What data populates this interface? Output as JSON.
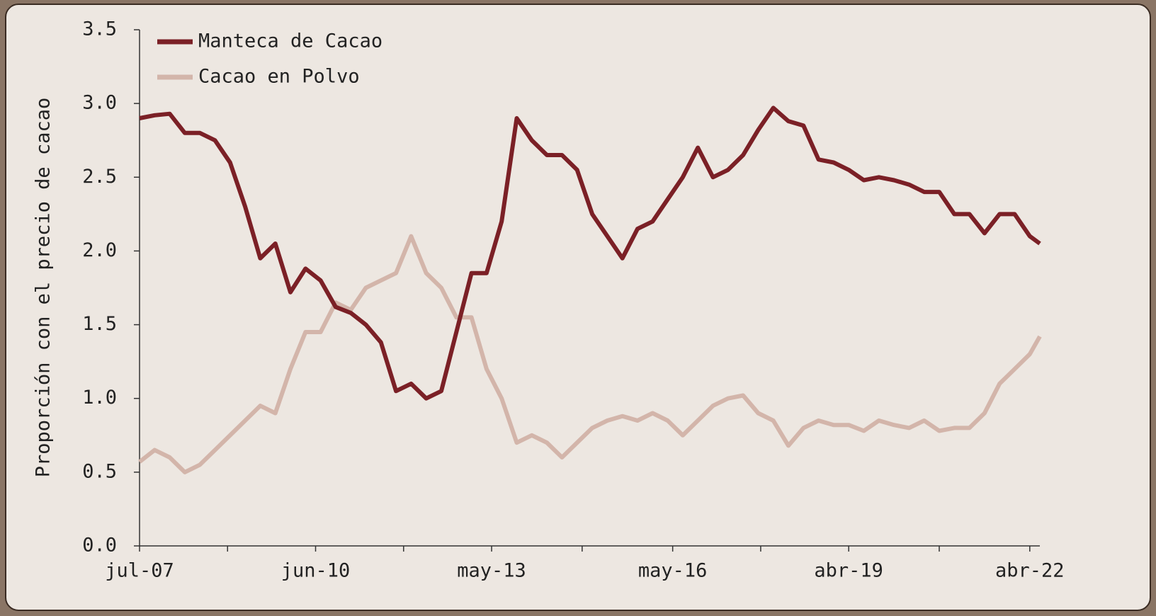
{
  "chart_data": {
    "type": "line",
    "y_label": "Proporción con el precio de cacao",
    "x": [
      "2007-07",
      "2007-10",
      "2008-01",
      "2008-04",
      "2008-07",
      "2008-10",
      "2009-01",
      "2009-04",
      "2009-07",
      "2009-10",
      "2010-01",
      "2010-04",
      "2010-07",
      "2010-10",
      "2011-01",
      "2011-04",
      "2011-07",
      "2011-10",
      "2012-01",
      "2012-04",
      "2012-07",
      "2012-10",
      "2013-01",
      "2013-04",
      "2013-07",
      "2013-10",
      "2014-01",
      "2014-04",
      "2014-07",
      "2014-10",
      "2015-01",
      "2015-04",
      "2015-07",
      "2015-10",
      "2016-01",
      "2016-04",
      "2016-07",
      "2016-10",
      "2017-01",
      "2017-04",
      "2017-07",
      "2017-10",
      "2018-01",
      "2018-04",
      "2018-07",
      "2018-10",
      "2019-01",
      "2019-04",
      "2019-07",
      "2019-10",
      "2020-01",
      "2020-04",
      "2020-07",
      "2020-10",
      "2021-01",
      "2021-04",
      "2021-07",
      "2021-10",
      "2022-01",
      "2022-04",
      "2022-06"
    ],
    "series": [
      {
        "name": "Manteca de Cacao",
        "color": "#7b2026",
        "values": [
          2.9,
          2.92,
          2.93,
          2.8,
          2.8,
          2.75,
          2.6,
          2.3,
          1.95,
          2.05,
          1.72,
          1.88,
          1.8,
          1.62,
          1.58,
          1.5,
          1.38,
          1.05,
          1.1,
          1.0,
          1.05,
          1.45,
          1.85,
          1.85,
          2.2,
          2.9,
          2.75,
          2.65,
          2.65,
          2.55,
          2.25,
          2.1,
          1.95,
          2.15,
          2.2,
          2.35,
          2.5,
          2.7,
          2.5,
          2.55,
          2.65,
          2.82,
          2.97,
          2.88,
          2.85,
          2.62,
          2.6,
          2.55,
          2.48,
          2.5,
          2.48,
          2.45,
          2.4,
          2.4,
          2.25,
          2.25,
          2.12,
          2.25,
          2.25,
          2.1,
          2.05
        ]
      },
      {
        "name": "Cacao en Polvo",
        "color": "#d3b5aa",
        "values": [
          0.57,
          0.65,
          0.6,
          0.5,
          0.55,
          0.65,
          0.75,
          0.85,
          0.95,
          0.9,
          1.2,
          1.45,
          1.45,
          1.65,
          1.6,
          1.75,
          1.8,
          1.85,
          2.1,
          1.85,
          1.75,
          1.55,
          1.55,
          1.2,
          1.0,
          0.7,
          0.75,
          0.7,
          0.6,
          0.7,
          0.8,
          0.85,
          0.88,
          0.85,
          0.9,
          0.85,
          0.75,
          0.85,
          0.95,
          1.0,
          1.02,
          0.9,
          0.85,
          0.68,
          0.8,
          0.85,
          0.82,
          0.82,
          0.78,
          0.85,
          0.82,
          0.8,
          0.85,
          0.78,
          0.8,
          0.8,
          0.9,
          1.1,
          1.2,
          1.3,
          1.42
        ]
      }
    ],
    "xlim": [
      "2007-07",
      "2022-06"
    ],
    "xticks": [
      {
        "value": "2007-07",
        "label": "jul-07"
      },
      {
        "value": "2010-06",
        "label": "jun-10"
      },
      {
        "value": "2013-05",
        "label": "may-13"
      },
      {
        "value": "2016-05",
        "label": "may-16"
      },
      {
        "value": "2019-04",
        "label": "abr-19"
      },
      {
        "value": "2022-04",
        "label": "abr-22"
      }
    ],
    "ylim": [
      0,
      3.5
    ],
    "yticks": [
      {
        "value": 0,
        "label": "0.0"
      },
      0.5,
      {
        "value": 1,
        "label": "1.0"
      },
      1.5,
      {
        "value": 2,
        "label": "2.0"
      },
      2.5,
      {
        "value": 3,
        "label": "3.0"
      },
      3.5
    ],
    "legend": "upper-left"
  }
}
